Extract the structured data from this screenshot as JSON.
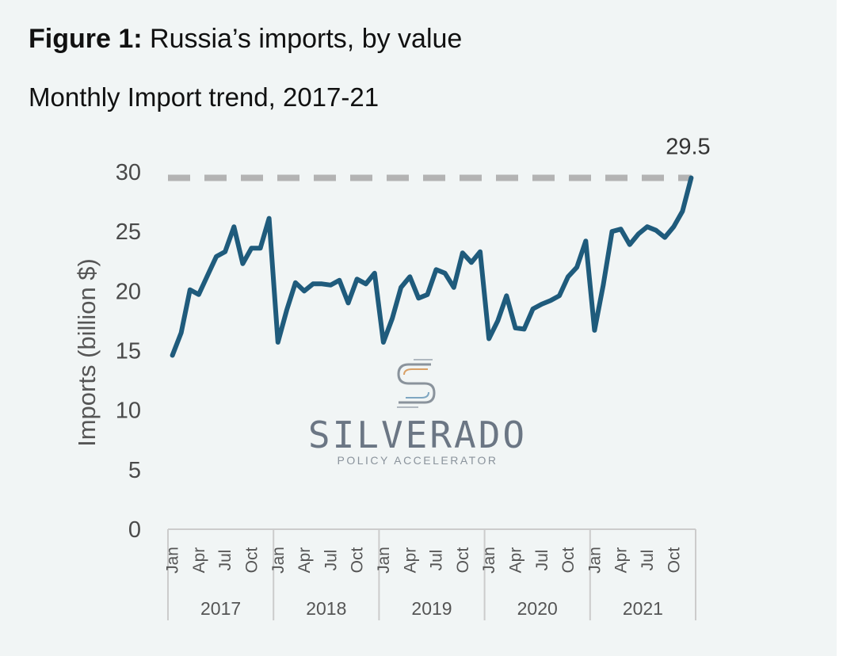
{
  "title": {
    "prefix": "Figure 1:",
    "text": " Russia’s imports, by value"
  },
  "subtitle": "Monthly Import trend, 2017-21",
  "watermark": {
    "name": "SILVERADO",
    "tagline": "POLICY ACCELERATOR"
  },
  "colors": {
    "line": "#1f5b7c",
    "reference": "#b3b3b3",
    "axis": "#cccccc"
  },
  "chart_data": {
    "type": "line",
    "title": "Russia’s imports, by value",
    "subtitle": "Monthly Import trend, 2017-21",
    "ylabel": "Imports (billion $)",
    "xlabel": "",
    "ylim": [
      0,
      30
    ],
    "yticks": [
      "0",
      "5",
      "10",
      "15",
      "20",
      "25",
      "30"
    ],
    "ytick_values": [
      0,
      5,
      10,
      15,
      20,
      25,
      30
    ],
    "grid": false,
    "month_ticks": [
      "Jan",
      "Apr",
      "Jul",
      "Oct"
    ],
    "years": [
      "2017",
      "2018",
      "2019",
      "2020",
      "2021"
    ],
    "reference_line": {
      "value": 29.5,
      "style": "dashed",
      "label": "29.5"
    },
    "series": [
      {
        "name": "Imports",
        "values": [
          14.6,
          16.5,
          20.1,
          19.7,
          21.3,
          22.9,
          23.3,
          25.4,
          22.3,
          23.6,
          23.6,
          26.1,
          15.7,
          18.4,
          20.7,
          20.0,
          20.6,
          20.6,
          20.5,
          20.9,
          19.0,
          21.0,
          20.6,
          21.5,
          15.7,
          17.7,
          20.3,
          21.2,
          19.4,
          19.7,
          21.8,
          21.5,
          20.3,
          23.2,
          22.4,
          23.3,
          16.0,
          17.5,
          19.6,
          16.9,
          16.8,
          18.5,
          18.9,
          19.2,
          19.6,
          21.2,
          22.0,
          24.2,
          16.7,
          20.5,
          25.0,
          25.2,
          23.9,
          24.8,
          25.4,
          25.1,
          24.5,
          25.4,
          26.7,
          29.5
        ]
      }
    ]
  }
}
